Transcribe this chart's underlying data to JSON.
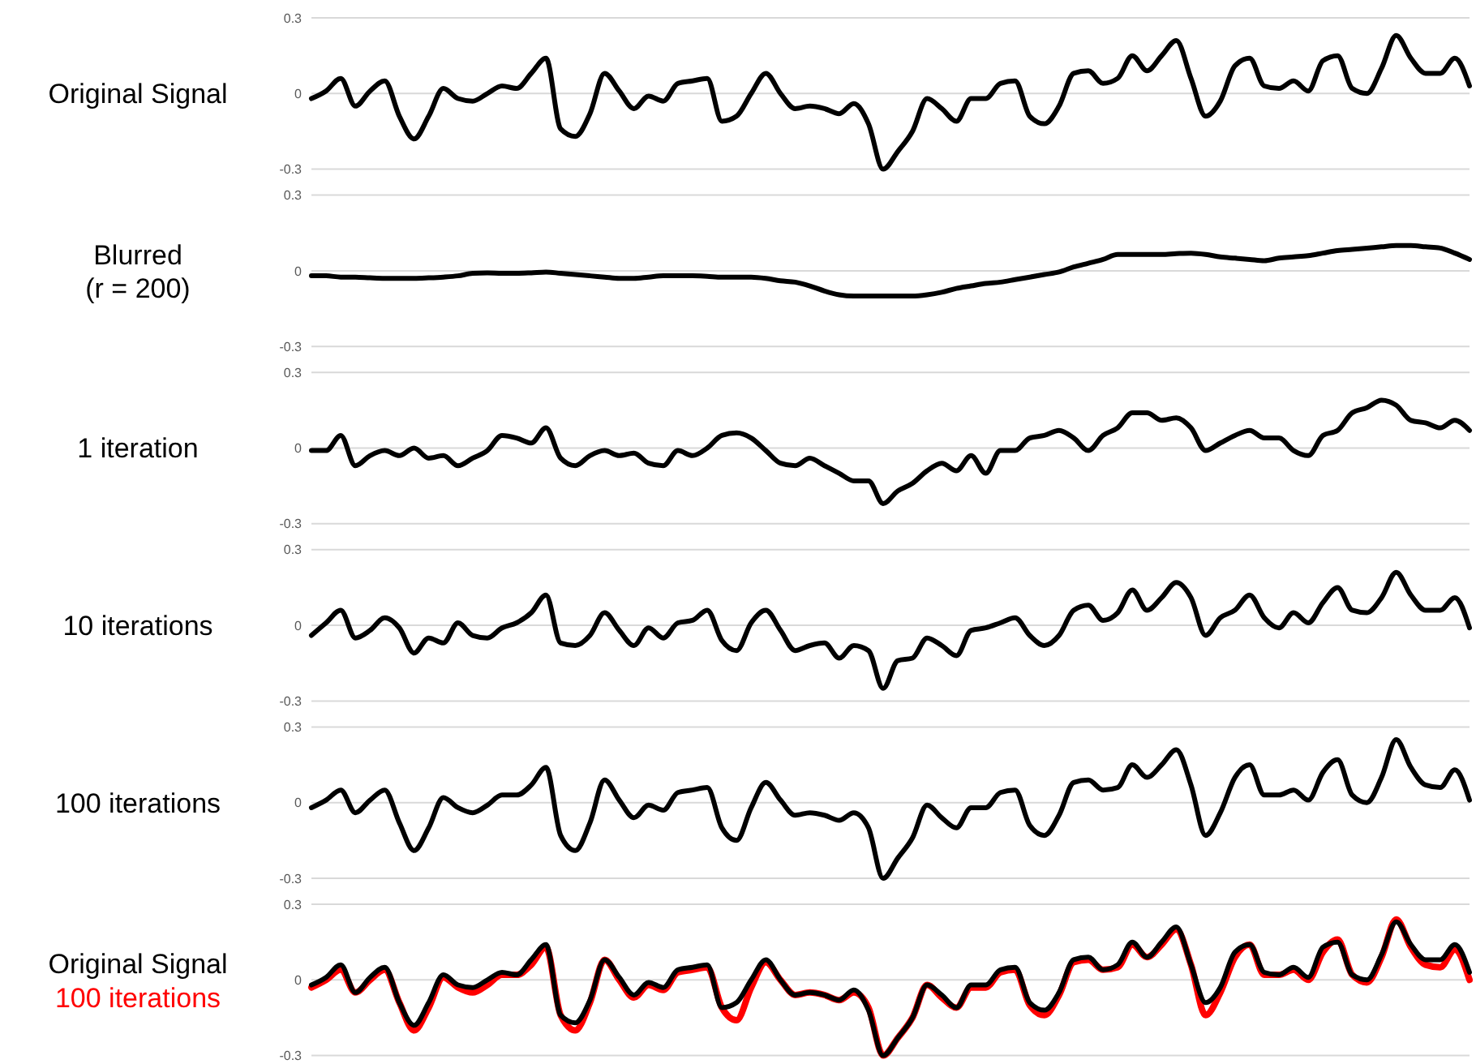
{
  "chart_data": [
    {
      "type": "line",
      "title": "Original Signal",
      "categories": [
        null,
        null,
        null,
        null,
        null,
        null,
        null,
        null,
        null,
        null,
        null,
        null,
        null,
        null,
        null,
        null,
        null,
        null,
        null,
        null,
        null,
        null,
        null,
        null,
        null,
        null,
        null,
        null,
        null,
        null,
        null,
        null,
        null,
        null,
        null,
        null,
        null,
        null,
        null,
        null,
        null,
        null,
        null,
        null,
        null,
        null,
        null,
        null,
        null,
        null,
        null,
        null,
        null,
        null,
        null,
        null,
        null,
        null,
        null,
        null,
        null,
        null,
        null,
        null,
        null,
        null,
        null,
        null,
        null,
        null,
        null,
        null,
        null,
        null,
        null,
        null,
        null,
        null,
        null,
        null
      ],
      "ylim": [
        -0.3,
        0.3
      ],
      "yticks": [
        -0.3,
        0,
        0.3
      ],
      "grid": "y",
      "tick_labels": "y",
      "series": [
        {
          "color": "#000000",
          "values": [
            -0.02,
            0.01,
            0.06,
            -0.05,
            0.01,
            0.05,
            -0.09,
            -0.18,
            -0.09,
            0.02,
            -0.02,
            -0.03,
            0,
            0.03,
            0.02,
            0.08,
            0.14,
            -0.14,
            -0.17,
            -0.08,
            0.08,
            0.01,
            -0.06,
            -0.01,
            -0.03,
            0.04,
            0.05,
            0.06,
            -0.11,
            -0.09,
            0,
            0.08,
            0,
            -0.06,
            -0.05,
            -0.06,
            -0.08,
            -0.04,
            -0.12,
            -0.3,
            -0.23,
            -0.15,
            -0.02,
            -0.06,
            -0.11,
            -0.02,
            -0.02,
            0.04,
            0.05,
            -0.09,
            -0.12,
            -0.05,
            0.08,
            0.09,
            0.04,
            0.06,
            0.15,
            0.09,
            0.15,
            0.21,
            0.06,
            -0.09,
            -0.03,
            0.11,
            0.14,
            0.03,
            0.02,
            0.05,
            0.01,
            0.13,
            0.15,
            0.02,
            0,
            0.1,
            0.23,
            0.14,
            0.08,
            0.08,
            0.14,
            0.03
          ]
        }
      ]
    },
    {
      "type": "line",
      "title": "Blurred\n(r = 200)",
      "categories": [
        null,
        null,
        null,
        null,
        null,
        null,
        null,
        null,
        null,
        null,
        null,
        null,
        null,
        null,
        null,
        null,
        null,
        null,
        null,
        null,
        null,
        null,
        null,
        null,
        null,
        null,
        null,
        null,
        null,
        null,
        null,
        null,
        null,
        null,
        null,
        null,
        null,
        null,
        null,
        null,
        null,
        null,
        null,
        null,
        null,
        null,
        null,
        null,
        null,
        null,
        null,
        null,
        null,
        null,
        null,
        null,
        null,
        null,
        null,
        null,
        null,
        null,
        null,
        null,
        null,
        null,
        null,
        null,
        null,
        null,
        null,
        null,
        null,
        null,
        null,
        null,
        null,
        null,
        null,
        null
      ],
      "ylim": [
        -0.3,
        0.3
      ],
      "yticks": [
        -0.3,
        0,
        0.3
      ],
      "grid": "y",
      "tick_labels": "y",
      "series": [
        {
          "color": "#000000",
          "values": [
            -0.02,
            -0.02,
            -0.025,
            -0.025,
            -0.028,
            -0.03,
            -0.03,
            -0.03,
            -0.028,
            -0.025,
            -0.02,
            -0.01,
            -0.008,
            -0.01,
            -0.01,
            -0.008,
            -0.005,
            -0.01,
            -0.015,
            -0.02,
            -0.025,
            -0.03,
            -0.03,
            -0.025,
            -0.02,
            -0.02,
            -0.02,
            -0.022,
            -0.025,
            -0.025,
            -0.025,
            -0.03,
            -0.04,
            -0.045,
            -0.06,
            -0.08,
            -0.095,
            -0.1,
            -0.1,
            -0.1,
            -0.1,
            -0.1,
            -0.095,
            -0.085,
            -0.07,
            -0.06,
            -0.05,
            -0.045,
            -0.035,
            -0.025,
            -0.015,
            -0.005,
            0.015,
            0.03,
            0.045,
            0.065,
            0.065,
            0.065,
            0.065,
            0.068,
            0.07,
            0.065,
            0.055,
            0.05,
            0.045,
            0.04,
            0.05,
            0.055,
            0.06,
            0.07,
            0.08,
            0.085,
            0.09,
            0.095,
            0.1,
            0.1,
            0.095,
            0.09,
            0.07,
            0.045
          ]
        }
      ]
    },
    {
      "type": "line",
      "title": "1 iteration",
      "categories": [
        null,
        null,
        null,
        null,
        null,
        null,
        null,
        null,
        null,
        null,
        null,
        null,
        null,
        null,
        null,
        null,
        null,
        null,
        null,
        null,
        null,
        null,
        null,
        null,
        null,
        null,
        null,
        null,
        null,
        null,
        null,
        null,
        null,
        null,
        null,
        null,
        null,
        null,
        null,
        null,
        null,
        null,
        null,
        null,
        null,
        null,
        null,
        null,
        null,
        null,
        null,
        null,
        null,
        null,
        null,
        null,
        null,
        null,
        null,
        null,
        null,
        null,
        null,
        null,
        null,
        null,
        null,
        null,
        null,
        null,
        null,
        null,
        null,
        null,
        null,
        null,
        null,
        null,
        null,
        null
      ],
      "ylim": [
        -0.3,
        0.3
      ],
      "yticks": [
        -0.3,
        0,
        0.3
      ],
      "grid": "y",
      "tick_labels": "y",
      "series": [
        {
          "color": "#000000",
          "values": [
            -0.01,
            -0.01,
            0.05,
            -0.07,
            -0.03,
            -0.01,
            -0.03,
            0,
            -0.04,
            -0.03,
            -0.07,
            -0.04,
            -0.01,
            0.05,
            0.04,
            0.02,
            0.08,
            -0.04,
            -0.07,
            -0.03,
            -0.01,
            -0.03,
            -0.02,
            -0.06,
            -0.07,
            -0.01,
            -0.03,
            0,
            0.05,
            0.06,
            0.04,
            -0.01,
            -0.06,
            -0.07,
            -0.04,
            -0.07,
            -0.1,
            -0.13,
            -0.13,
            -0.22,
            -0.17,
            -0.14,
            -0.09,
            -0.06,
            -0.09,
            -0.03,
            -0.1,
            -0.01,
            -0.01,
            0.04,
            0.05,
            0.07,
            0.04,
            -0.01,
            0.05,
            0.08,
            0.14,
            0.14,
            0.11,
            0.12,
            0.08,
            -0.01,
            0.02,
            0.05,
            0.07,
            0.04,
            0.04,
            -0.01,
            -0.03,
            0.05,
            0.07,
            0.14,
            0.16,
            0.19,
            0.17,
            0.11,
            0.1,
            0.08,
            0.11,
            0.07
          ]
        }
      ]
    },
    {
      "type": "line",
      "title": "10 iterations",
      "categories": [
        null,
        null,
        null,
        null,
        null,
        null,
        null,
        null,
        null,
        null,
        null,
        null,
        null,
        null,
        null,
        null,
        null,
        null,
        null,
        null,
        null,
        null,
        null,
        null,
        null,
        null,
        null,
        null,
        null,
        null,
        null,
        null,
        null,
        null,
        null,
        null,
        null,
        null,
        null,
        null,
        null,
        null,
        null,
        null,
        null,
        null,
        null,
        null,
        null,
        null,
        null,
        null,
        null,
        null,
        null,
        null,
        null,
        null,
        null,
        null,
        null,
        null,
        null,
        null,
        null,
        null,
        null,
        null,
        null,
        null,
        null,
        null,
        null,
        null,
        null,
        null,
        null,
        null,
        null,
        null
      ],
      "ylim": [
        -0.3,
        0.3
      ],
      "yticks": [
        -0.3,
        0,
        0.3
      ],
      "grid": "y",
      "tick_labels": "y",
      "series": [
        {
          "color": "#000000",
          "values": [
            -0.04,
            0.01,
            0.06,
            -0.05,
            -0.02,
            0.03,
            -0.01,
            -0.11,
            -0.05,
            -0.07,
            0.01,
            -0.04,
            -0.05,
            -0.01,
            0.01,
            0.05,
            0.12,
            -0.07,
            -0.08,
            -0.04,
            0.05,
            -0.02,
            -0.08,
            -0.01,
            -0.05,
            0.01,
            0.02,
            0.06,
            -0.06,
            -0.1,
            0.01,
            0.06,
            -0.02,
            -0.1,
            -0.08,
            -0.07,
            -0.13,
            -0.08,
            -0.1,
            -0.25,
            -0.14,
            -0.13,
            -0.05,
            -0.08,
            -0.12,
            -0.02,
            -0.01,
            0.01,
            0.03,
            -0.04,
            -0.08,
            -0.04,
            0.06,
            0.08,
            0.02,
            0.05,
            0.14,
            0.06,
            0.11,
            0.17,
            0.11,
            -0.04,
            0.03,
            0.06,
            0.12,
            0.03,
            -0.01,
            0.05,
            0.01,
            0.09,
            0.15,
            0.06,
            0.05,
            0.11,
            0.21,
            0.12,
            0.06,
            0.06,
            0.11,
            -0.01
          ]
        }
      ]
    },
    {
      "type": "line",
      "title": "100 iterations",
      "categories": [
        null,
        null,
        null,
        null,
        null,
        null,
        null,
        null,
        null,
        null,
        null,
        null,
        null,
        null,
        null,
        null,
        null,
        null,
        null,
        null,
        null,
        null,
        null,
        null,
        null,
        null,
        null,
        null,
        null,
        null,
        null,
        null,
        null,
        null,
        null,
        null,
        null,
        null,
        null,
        null,
        null,
        null,
        null,
        null,
        null,
        null,
        null,
        null,
        null,
        null,
        null,
        null,
        null,
        null,
        null,
        null,
        null,
        null,
        null,
        null,
        null,
        null,
        null,
        null,
        null,
        null,
        null,
        null,
        null,
        null,
        null,
        null,
        null,
        null,
        null,
        null,
        null,
        null,
        null,
        null
      ],
      "ylim": [
        -0.3,
        0.3
      ],
      "yticks": [
        -0.3,
        0,
        0.3
      ],
      "grid": "y",
      "tick_labels": "y",
      "series": [
        {
          "color": "#000000",
          "values": [
            -0.02,
            0.01,
            0.05,
            -0.04,
            0.01,
            0.05,
            -0.08,
            -0.19,
            -0.1,
            0.02,
            -0.02,
            -0.04,
            -0.01,
            0.03,
            0.03,
            0.07,
            0.14,
            -0.13,
            -0.19,
            -0.08,
            0.09,
            0.01,
            -0.06,
            -0.01,
            -0.03,
            0.04,
            0.05,
            0.06,
            -0.1,
            -0.15,
            -0.02,
            0.08,
            0.01,
            -0.05,
            -0.04,
            -0.05,
            -0.07,
            -0.04,
            -0.1,
            -0.3,
            -0.22,
            -0.14,
            -0.01,
            -0.06,
            -0.1,
            -0.02,
            -0.02,
            0.04,
            0.05,
            -0.09,
            -0.13,
            -0.05,
            0.08,
            0.09,
            0.05,
            0.06,
            0.15,
            0.1,
            0.15,
            0.21,
            0.07,
            -0.13,
            -0.04,
            0.1,
            0.15,
            0.03,
            0.03,
            0.05,
            0.01,
            0.12,
            0.17,
            0.03,
            0,
            0.1,
            0.25,
            0.14,
            0.07,
            0.06,
            0.13,
            0.01
          ]
        }
      ]
    },
    {
      "type": "line",
      "legend": "left",
      "categories": [
        null,
        null,
        null,
        null,
        null,
        null,
        null,
        null,
        null,
        null,
        null,
        null,
        null,
        null,
        null,
        null,
        null,
        null,
        null,
        null,
        null,
        null,
        null,
        null,
        null,
        null,
        null,
        null,
        null,
        null,
        null,
        null,
        null,
        null,
        null,
        null,
        null,
        null,
        null,
        null,
        null,
        null,
        null,
        null,
        null,
        null,
        null,
        null,
        null,
        null,
        null,
        null,
        null,
        null,
        null,
        null,
        null,
        null,
        null,
        null,
        null,
        null,
        null,
        null,
        null,
        null,
        null,
        null,
        null,
        null,
        null,
        null,
        null,
        null,
        null,
        null,
        null,
        null,
        null,
        null
      ],
      "ylim": [
        -0.3,
        0.3
      ],
      "yticks": [
        -0.3,
        0,
        0.3
      ],
      "grid": "y",
      "tick_labels": "y",
      "series": [
        {
          "name": "Original Signal",
          "color": "#000000",
          "values": [
            -0.02,
            0.01,
            0.06,
            -0.05,
            0.01,
            0.05,
            -0.09,
            -0.18,
            -0.09,
            0.02,
            -0.02,
            -0.03,
            0,
            0.03,
            0.02,
            0.08,
            0.14,
            -0.14,
            -0.17,
            -0.08,
            0.08,
            0.01,
            -0.06,
            -0.01,
            -0.03,
            0.04,
            0.05,
            0.06,
            -0.11,
            -0.09,
            0,
            0.08,
            0,
            -0.06,
            -0.05,
            -0.06,
            -0.08,
            -0.04,
            -0.12,
            -0.3,
            -0.23,
            -0.15,
            -0.02,
            -0.06,
            -0.11,
            -0.02,
            -0.02,
            0.04,
            0.05,
            -0.09,
            -0.12,
            -0.05,
            0.08,
            0.09,
            0.04,
            0.06,
            0.15,
            0.09,
            0.15,
            0.21,
            0.06,
            -0.09,
            -0.03,
            0.11,
            0.14,
            0.03,
            0.02,
            0.05,
            0.01,
            0.13,
            0.15,
            0.02,
            0,
            0.1,
            0.23,
            0.14,
            0.08,
            0.08,
            0.14,
            0.03
          ]
        },
        {
          "name": "100 iterations",
          "color": "#ff0000",
          "values": [
            -0.03,
            0,
            0.04,
            -0.05,
            0,
            0.04,
            -0.09,
            -0.2,
            -0.11,
            0.01,
            -0.03,
            -0.05,
            -0.02,
            0.02,
            0.02,
            0.06,
            0.13,
            -0.14,
            -0.2,
            -0.09,
            0.08,
            0,
            -0.07,
            -0.02,
            -0.04,
            0.03,
            0.04,
            0.05,
            -0.11,
            -0.16,
            -0.03,
            0.07,
            0,
            -0.06,
            -0.05,
            -0.06,
            -0.08,
            -0.05,
            -0.11,
            -0.3,
            -0.23,
            -0.15,
            -0.02,
            -0.07,
            -0.11,
            -0.03,
            -0.03,
            0.03,
            0.04,
            -0.1,
            -0.14,
            -0.06,
            0.07,
            0.08,
            0.04,
            0.05,
            0.14,
            0.09,
            0.14,
            0.2,
            0.06,
            -0.14,
            -0.05,
            0.09,
            0.14,
            0.02,
            0.02,
            0.04,
            0,
            0.11,
            0.16,
            0.02,
            -0.01,
            0.09,
            0.24,
            0.13,
            0.06,
            0.05,
            0.12,
            0
          ]
        }
      ]
    }
  ]
}
